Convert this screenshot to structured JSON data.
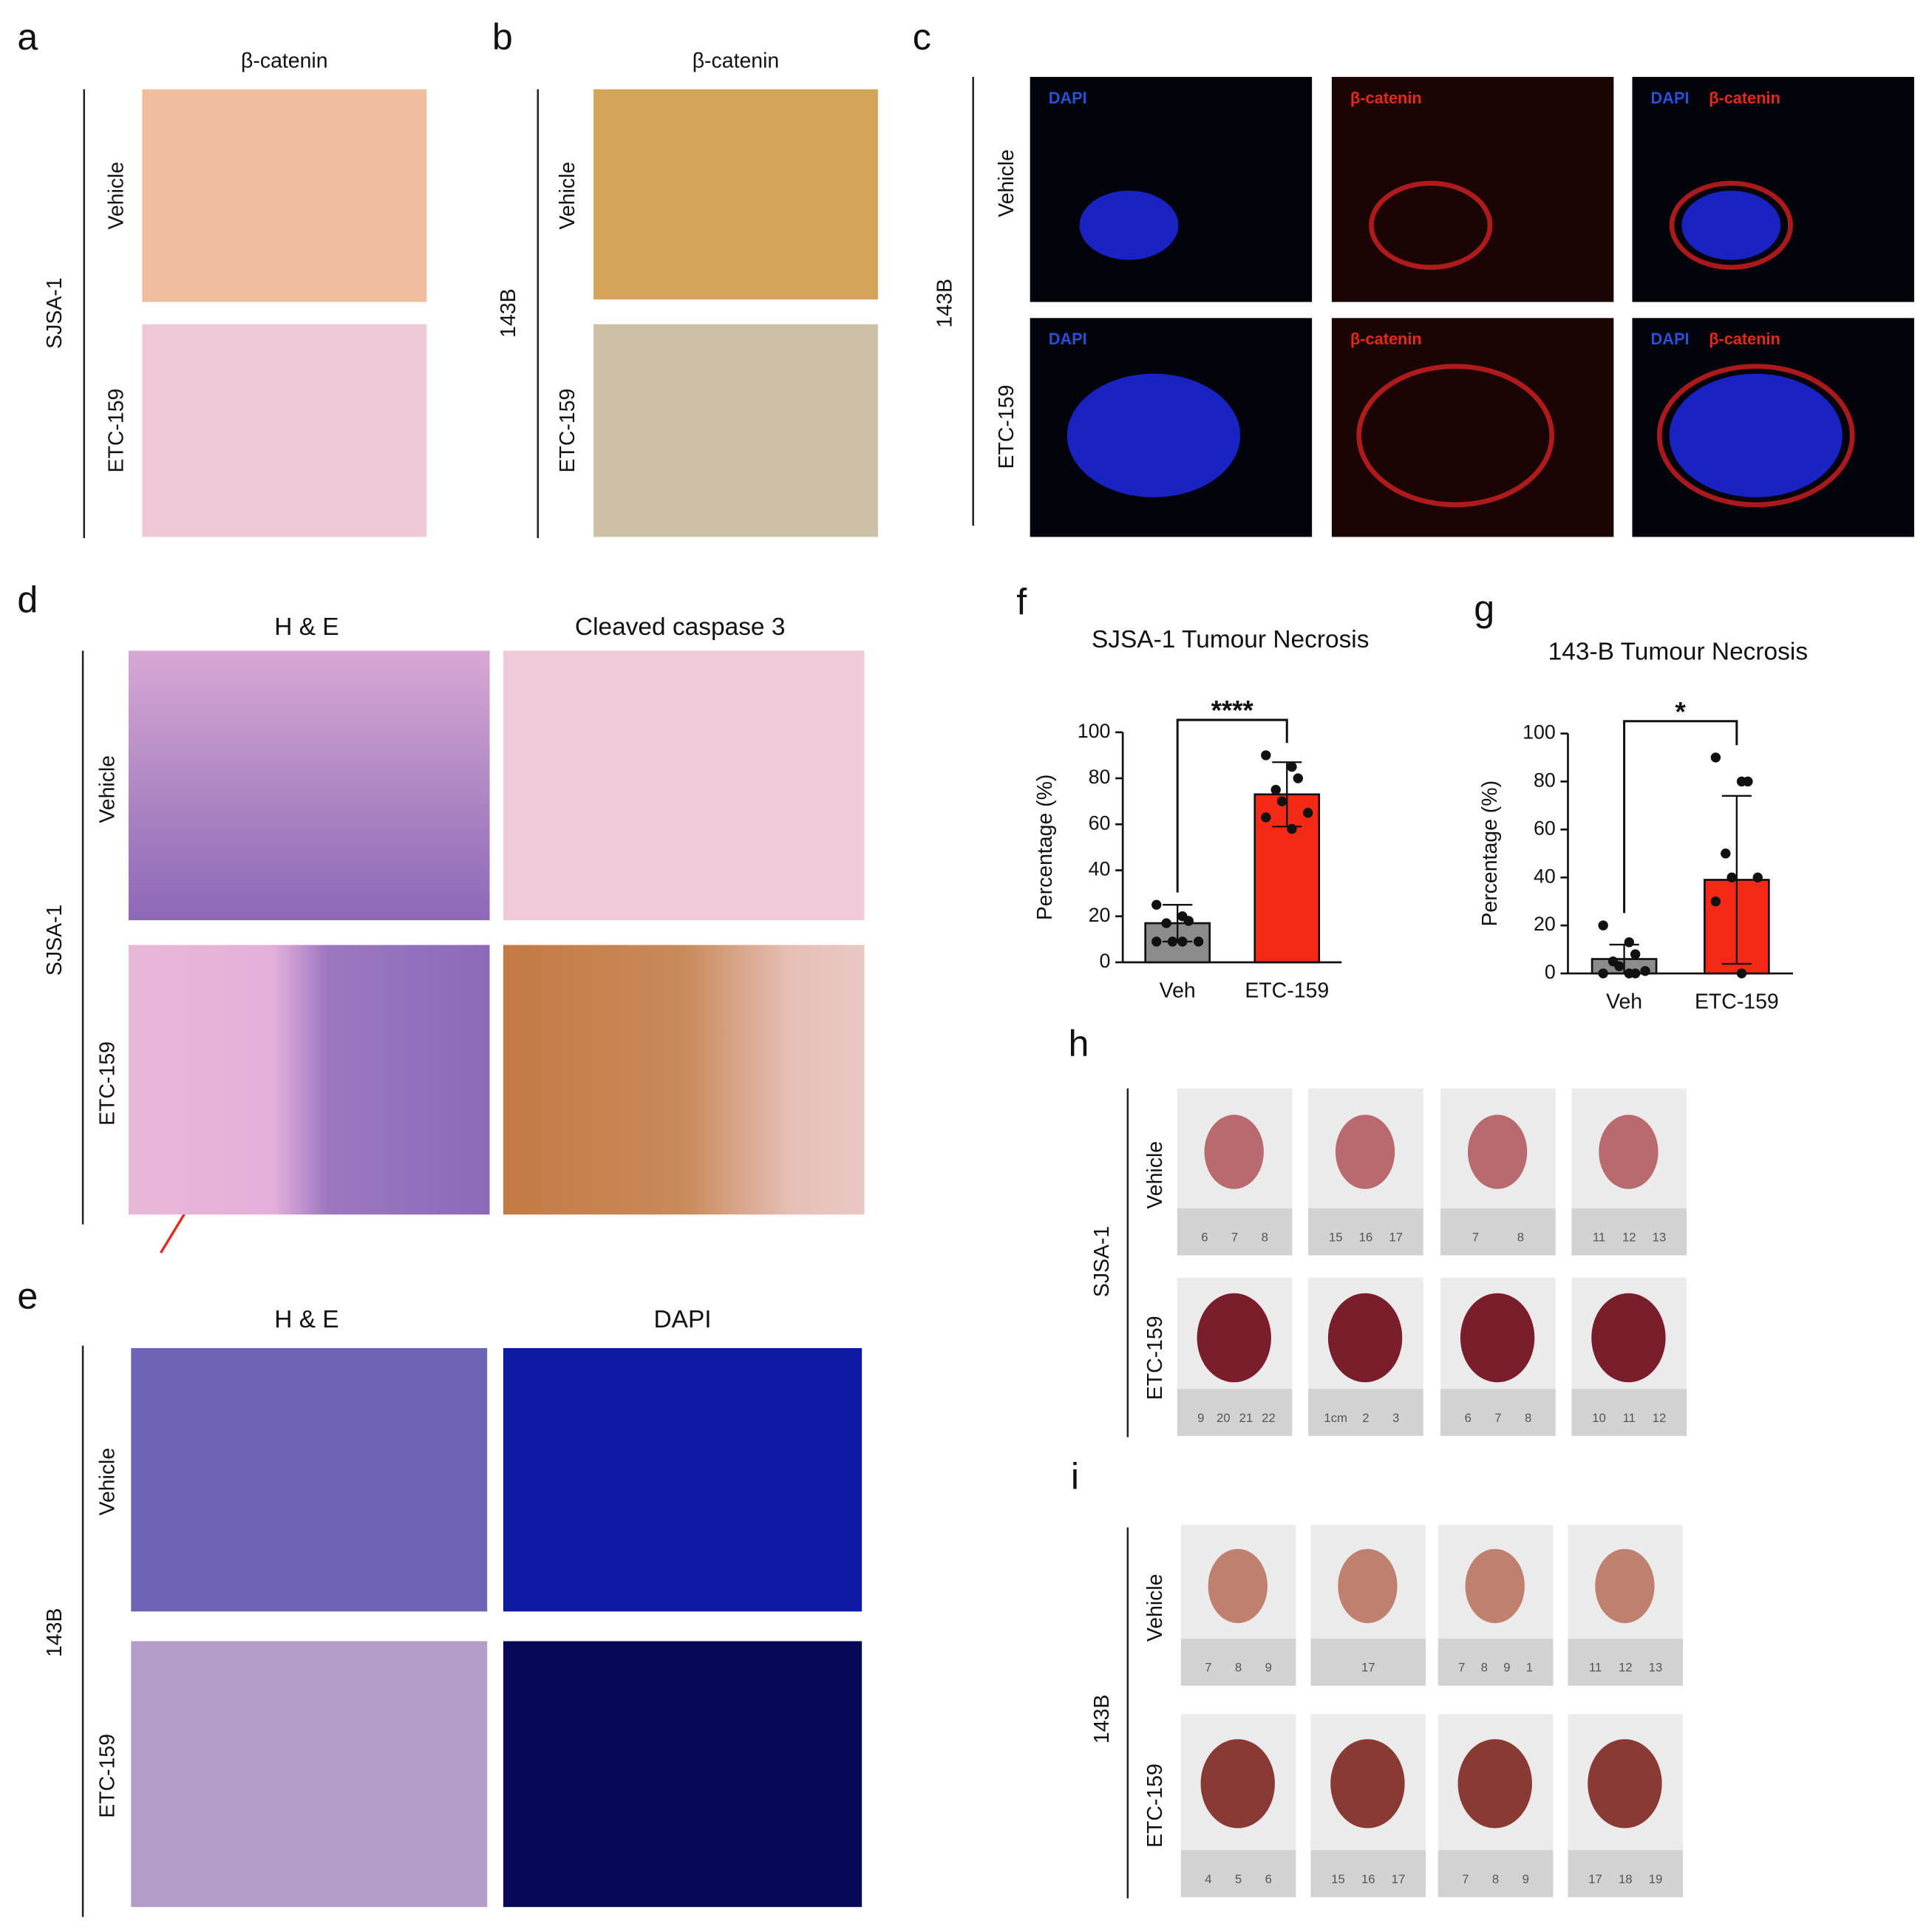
{
  "panels": {
    "a": {
      "letter": "a",
      "header": "β-catenin",
      "group": "SJSA-1",
      "rows": [
        "Vehicle",
        "ETC-159"
      ]
    },
    "b": {
      "letter": "b",
      "header": "β-catenin",
      "group": "143B",
      "rows": [
        "Vehicle",
        "ETC-159"
      ]
    },
    "c": {
      "letter": "c",
      "group": "143B",
      "rows": [
        "Vehicle",
        "ETC-159"
      ],
      "channels": [
        "DAPI",
        "β-catenin"
      ]
    },
    "d": {
      "letter": "d",
      "headers": [
        "H & E",
        "Cleaved caspase 3"
      ],
      "group": "SJSA-1",
      "rows": [
        "Vehicle",
        "ETC-159"
      ]
    },
    "e": {
      "letter": "e",
      "headers": [
        "H & E",
        "DAPI"
      ],
      "group": "143B",
      "rows": [
        "Vehicle",
        "ETC-159"
      ]
    },
    "h": {
      "letter": "h",
      "group": "SJSA-1",
      "rows": [
        "Vehicle",
        "ETC-159"
      ],
      "rulers": [
        [
          [
            "6",
            "7",
            "8"
          ],
          [
            "15",
            "16",
            "17"
          ],
          [
            "7",
            "8"
          ],
          [
            "11",
            "12",
            "13"
          ]
        ],
        [
          [
            "9",
            "20",
            "21",
            "22"
          ],
          [
            "1cm",
            "2",
            "3"
          ],
          [
            "6",
            "7",
            "8"
          ],
          [
            "10",
            "11",
            "12"
          ]
        ]
      ]
    },
    "i": {
      "letter": "i",
      "group": "143B",
      "rows": [
        "Vehicle",
        "ETC-159"
      ],
      "rulers": [
        [
          [
            "7",
            "8",
            "9"
          ],
          [
            "17"
          ],
          [
            "7",
            "8",
            "9",
            "1"
          ],
          [
            "11",
            "12",
            "13"
          ]
        ],
        [
          [
            "4",
            "5",
            "6"
          ],
          [
            "15",
            "16",
            "17"
          ],
          [
            "7",
            "8",
            "9"
          ],
          [
            "17",
            "18",
            "19"
          ]
        ]
      ]
    }
  },
  "chart_data": [
    {
      "type": "bar",
      "letter": "f",
      "title": "SJSA-1 Tumour Necrosis",
      "y_label": "Percentage (%)",
      "categories": [
        "Veh",
        "ETC-159"
      ],
      "values": [
        17,
        73
      ],
      "errors": [
        8,
        14
      ],
      "points": [
        [
          25,
          20,
          18,
          17,
          9,
          9,
          9,
          9
        ],
        [
          90,
          85,
          80,
          75,
          70,
          65,
          63,
          58
        ]
      ],
      "colors": [
        "#8c8c8c",
        "#f42a17"
      ],
      "annotation": "****",
      "ylim": [
        0,
        100
      ],
      "yticks": [
        0,
        20,
        40,
        60,
        80,
        100
      ]
    },
    {
      "type": "bar",
      "letter": "g",
      "title": "143-B Tumour Necrosis",
      "y_label": "Percentage (%)",
      "categories": [
        "Veh",
        "ETC-159"
      ],
      "values": [
        6,
        39
      ],
      "errors": [
        6,
        35
      ],
      "points": [
        [
          20,
          13,
          8,
          5,
          3,
          1,
          0,
          0,
          0
        ],
        [
          90,
          80,
          80,
          50,
          40,
          40,
          30,
          0
        ]
      ],
      "colors": [
        "#8c8c8c",
        "#f42a17"
      ],
      "annotation": "*",
      "ylim": [
        0,
        100
      ],
      "yticks": [
        0,
        20,
        40,
        60,
        80,
        100
      ]
    }
  ]
}
